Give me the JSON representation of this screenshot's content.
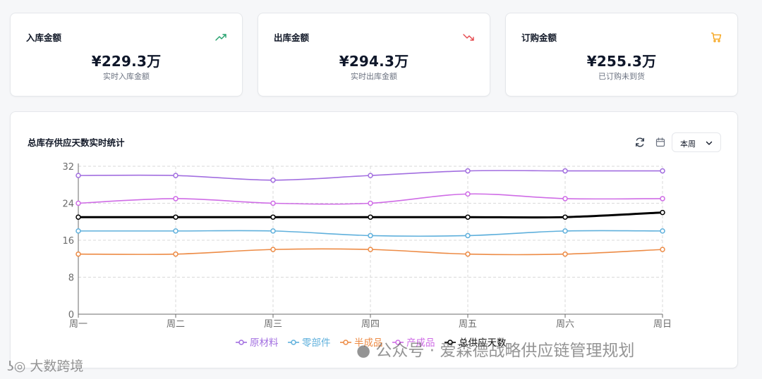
{
  "stats": [
    {
      "title": "入库金额",
      "value": "¥229.3万",
      "sub": "实时入库金额",
      "icon": "trend-up-icon",
      "icon_color": "#22a06b"
    },
    {
      "title": "出库金额",
      "value": "¥294.3万",
      "sub": "实时出库金额",
      "icon": "trend-down-icon",
      "icon_color": "#e5484d"
    },
    {
      "title": "订购金额",
      "value": "¥255.3万",
      "sub": "已订购未到货",
      "icon": "cart-icon",
      "icon_color": "#f59e0b"
    }
  ],
  "chart_panel": {
    "title": "总库存供应天数实时统计",
    "refresh_icon": "refresh-icon",
    "calendar_icon": "calendar-icon",
    "period": "本周"
  },
  "chart_data": {
    "type": "line",
    "categories": [
      "周一",
      "周二",
      "周三",
      "周四",
      "周五",
      "周六",
      "周日"
    ],
    "ylim": [
      0,
      32
    ],
    "yticks": [
      0,
      8,
      16,
      24,
      32
    ],
    "grid": true,
    "legend_position": "bottom",
    "series": [
      {
        "name": "原材料",
        "color": "#a26ee0",
        "values": [
          30,
          30,
          29,
          30,
          31,
          31,
          31
        ]
      },
      {
        "name": "零部件",
        "color": "#5fb0dc",
        "values": [
          18,
          18,
          18,
          17,
          17,
          18,
          18
        ]
      },
      {
        "name": "半成品",
        "color": "#ed8b45",
        "values": [
          13,
          13,
          14,
          14,
          13,
          13,
          14
        ]
      },
      {
        "name": "产成品",
        "color": "#cf6ce6",
        "values": [
          24,
          25,
          24,
          24,
          26,
          25,
          25
        ]
      },
      {
        "name": "总供应天数",
        "color": "#000000",
        "values": [
          21,
          21,
          21,
          21,
          21,
          21,
          22
        ]
      }
    ]
  },
  "watermarks": {
    "left": "大数跨境",
    "right": "公众号 · 爱森德战略供应链管理规划"
  }
}
